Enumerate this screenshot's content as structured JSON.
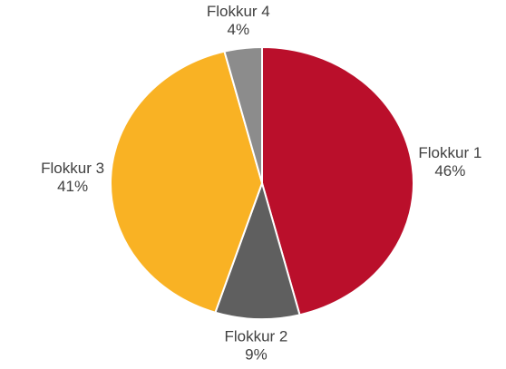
{
  "chart_data": {
    "type": "pie",
    "categories": [
      "Flokkur 1",
      "Flokkur 2",
      "Flokkur 3",
      "Flokkur 4"
    ],
    "values": [
      46,
      9,
      41,
      4
    ],
    "value_labels": [
      "46%",
      "9%",
      "41%",
      "4%"
    ],
    "colors": [
      "#ba0f2b",
      "#5f5f5f",
      "#f9b224",
      "#8c8c8c"
    ]
  }
}
